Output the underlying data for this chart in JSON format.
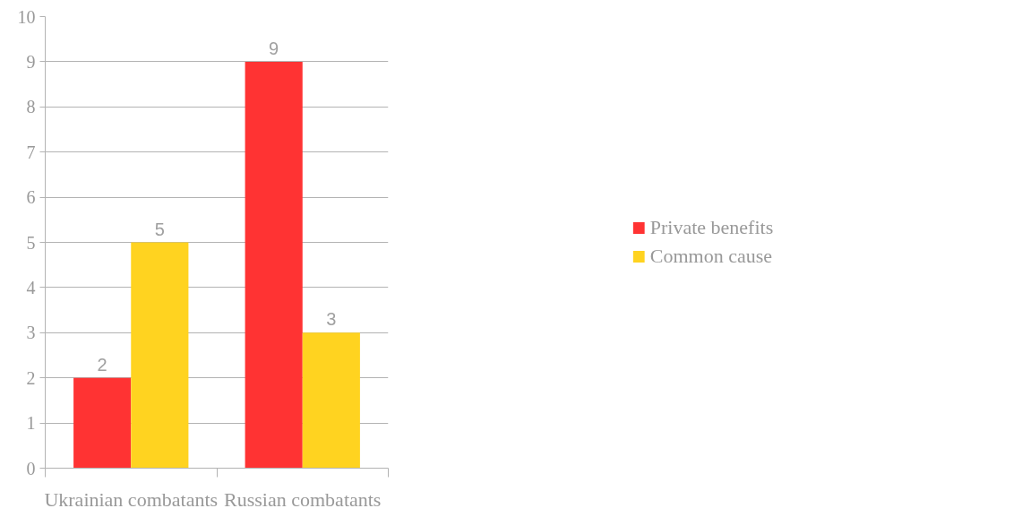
{
  "chart_data": {
    "type": "bar",
    "categories": [
      "Ukrainian combatants",
      "Russian combatants"
    ],
    "series": [
      {
        "name": "Private benefits",
        "color": "#ff3333",
        "values": [
          2,
          9
        ]
      },
      {
        "name": "Common cause",
        "color": "#ffd320",
        "values": [
          5,
          3
        ]
      }
    ],
    "ylim": [
      0,
      10
    ],
    "yticks": [
      0,
      1,
      2,
      3,
      4,
      5,
      6,
      7,
      8,
      9,
      10
    ],
    "grid": "y",
    "legend": "right",
    "data_labels": true
  }
}
